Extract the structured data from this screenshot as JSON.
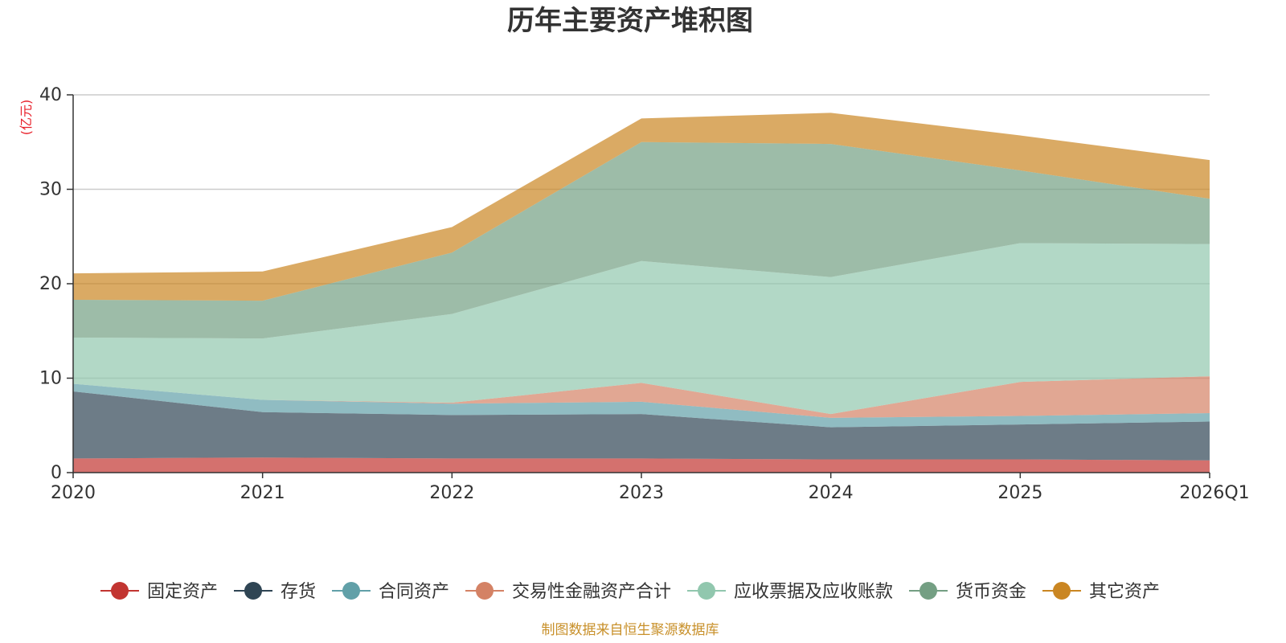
{
  "chart_data": {
    "type": "area",
    "stacked": true,
    "title": "历年主要资产堆积图",
    "ylabel": "(亿元)",
    "ylim": [
      0,
      40
    ],
    "yticks": [
      0,
      10,
      20,
      30,
      40
    ],
    "grid": true,
    "legend_position": "bottom",
    "categories": [
      "2020",
      "2021",
      "2022",
      "2023",
      "2024",
      "2025",
      "2026Q1"
    ],
    "series": [
      {
        "name": "固定资产",
        "color": "#c23531",
        "values": [
          1.5,
          1.6,
          1.5,
          1.5,
          1.4,
          1.4,
          1.3
        ]
      },
      {
        "name": "存货",
        "color": "#2f4554",
        "values": [
          7.1,
          4.8,
          4.6,
          4.7,
          3.4,
          3.7,
          4.1
        ]
      },
      {
        "name": "合同资产",
        "color": "#61a0a8",
        "values": [
          0.8,
          1.3,
          1.2,
          1.3,
          1.0,
          0.9,
          0.9
        ]
      },
      {
        "name": "交易性金融资产合计",
        "color": "#d48265",
        "values": [
          0.0,
          0.0,
          0.1,
          2.0,
          0.4,
          3.6,
          3.9
        ]
      },
      {
        "name": "应收票据及应收账款",
        "color": "#91c7ae",
        "values": [
          4.9,
          6.5,
          9.4,
          12.9,
          14.5,
          14.7,
          14.0
        ]
      },
      {
        "name": "货币资金",
        "color": "#749f83",
        "values": [
          4.0,
          4.0,
          6.5,
          12.6,
          14.1,
          7.7,
          4.8
        ]
      },
      {
        "name": "其它资产",
        "color": "#ca8622",
        "values": [
          2.8,
          3.1,
          2.7,
          2.5,
          3.3,
          3.7,
          4.1
        ]
      }
    ]
  },
  "footer": {
    "source": "制图数据来自恒生聚源数据库"
  }
}
